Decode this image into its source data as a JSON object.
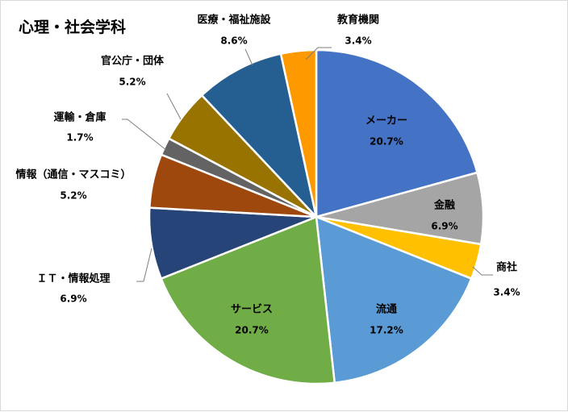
{
  "chart_data": {
    "type": "pie",
    "title": "心理・社会学科",
    "slices": [
      {
        "label": "メーカー",
        "value": 20.7,
        "display": "20.7%",
        "color": "#4472C4"
      },
      {
        "label": "金融",
        "value": 6.9,
        "display": "6.9%",
        "color": "#A5A5A5"
      },
      {
        "label": "商社",
        "value": 3.4,
        "display": "3.4%",
        "color": "#FFC000"
      },
      {
        "label": "流通",
        "value": 17.2,
        "display": "17.2%",
        "color": "#5B9BD5"
      },
      {
        "label": "サービス",
        "value": 20.7,
        "display": "20.7%",
        "color": "#70AD47"
      },
      {
        "label": "ＩＴ・情報処理",
        "value": 6.9,
        "display": "6.9%",
        "color": "#264478"
      },
      {
        "label": "情報（通信・マスコミ）",
        "value": 5.2,
        "display": "5.2%",
        "color": "#9E480E"
      },
      {
        "label": "運輸・倉庫",
        "value": 1.7,
        "display": "1.7%",
        "color": "#636363"
      },
      {
        "label": "官公庁・団体",
        "value": 5.2,
        "display": "5.2%",
        "color": "#997300"
      },
      {
        "label": "医療・福祉施設",
        "value": 8.6,
        "display": "8.6%",
        "color": "#255E91"
      },
      {
        "label": "教育機関",
        "value": 3.4,
        "display": "3.4%",
        "color": "#FF9900"
      }
    ],
    "legend": "none",
    "data_labels": "category-and-percent"
  }
}
